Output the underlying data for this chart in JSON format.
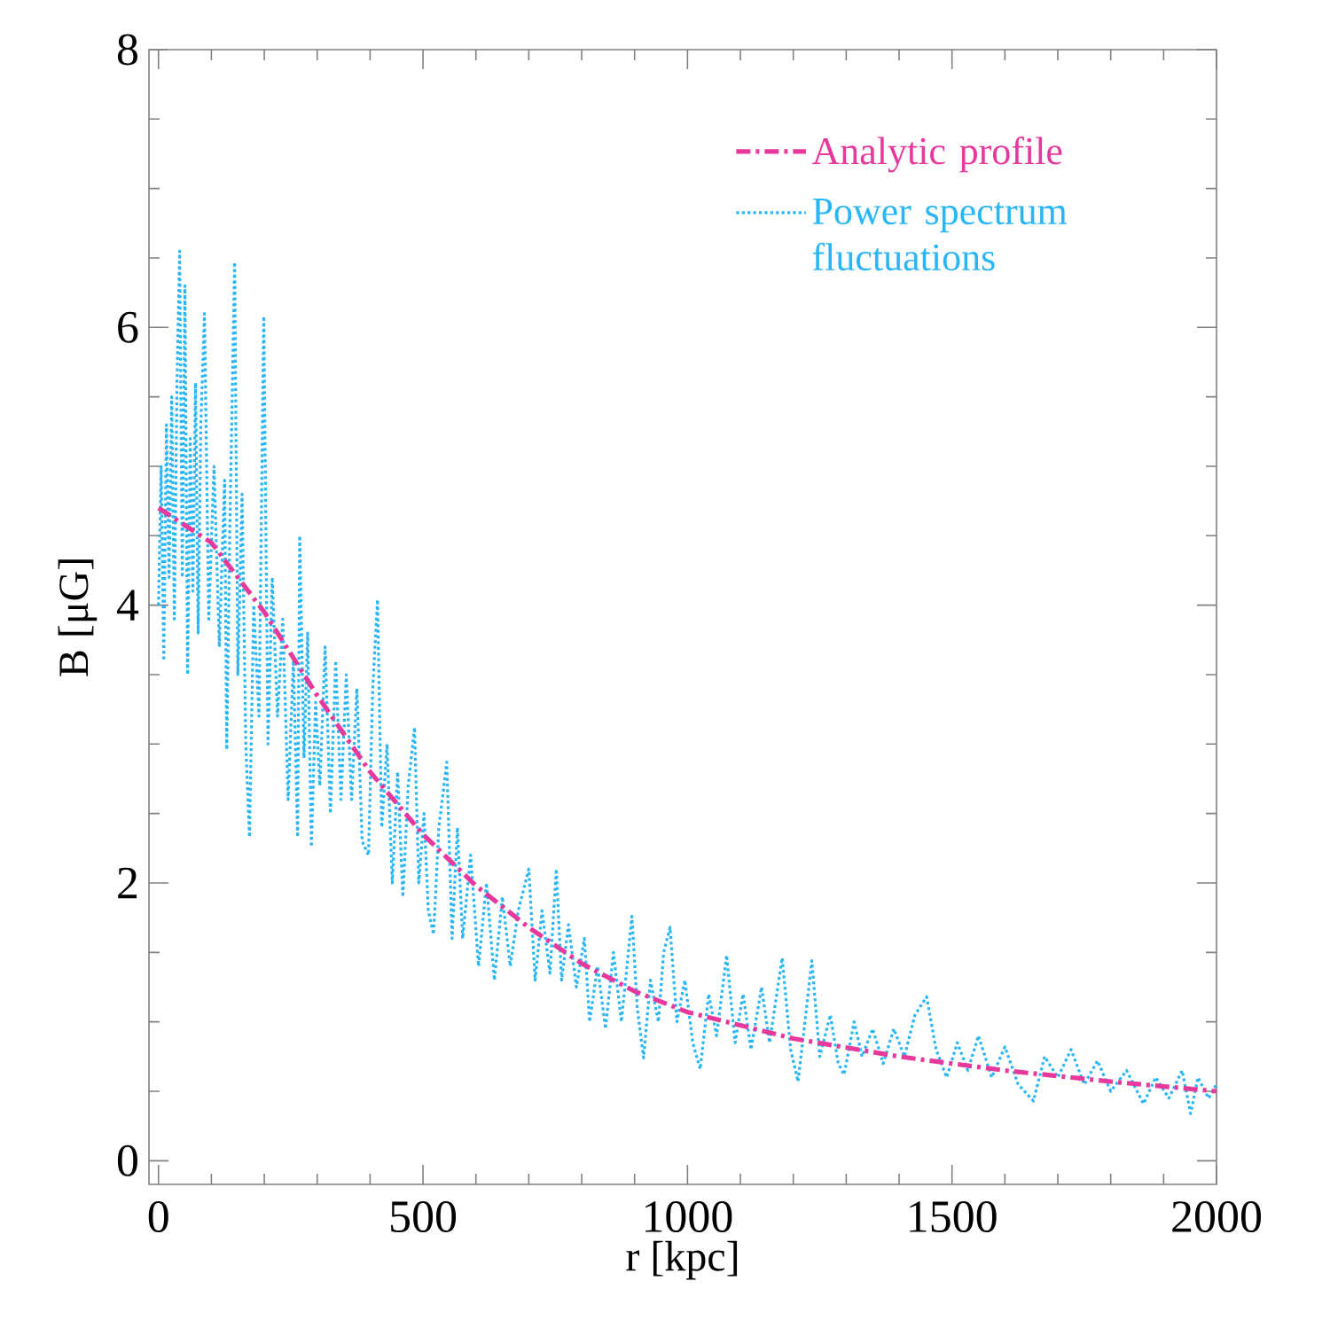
{
  "chart_data": {
    "type": "line",
    "xlabel": "r [kpc]",
    "ylabel": "B [μG]",
    "xlim": [
      -18,
      2000
    ],
    "ylim": [
      -0.17,
      8
    ],
    "xticks": [
      0,
      500,
      1000,
      1500,
      2000
    ],
    "yticks": [
      0,
      2,
      4,
      6,
      8
    ],
    "legend": "top right",
    "grid": false,
    "marker": "none",
    "series": [
      {
        "name": "Analytic profile",
        "color": "#e6399b",
        "line_style": "dashed",
        "x": [
          0,
          100,
          200,
          300,
          400,
          500,
          600,
          700,
          800,
          900,
          1000,
          1200,
          1400,
          1600,
          1800,
          2000
        ],
        "values": [
          4.7,
          4.45,
          3.95,
          3.35,
          2.8,
          2.35,
          1.98,
          1.68,
          1.42,
          1.22,
          1.07,
          0.88,
          0.75,
          0.65,
          0.57,
          0.5
        ]
      },
      {
        "name": "Power spectrum fluctuations",
        "color": "#29b6f6",
        "line_style": "dotted",
        "x": [
          0,
          5,
          10,
          15,
          20,
          25,
          30,
          35,
          40,
          45,
          50,
          55,
          60,
          65,
          70,
          75,
          80,
          87,
          95,
          105,
          115,
          125,
          129,
          135,
          144,
          150,
          158,
          165,
          172,
          180,
          190,
          199,
          207,
          215,
          225,
          235,
          245,
          255,
          263,
          267,
          275,
          282,
          289,
          297,
          305,
          315,
          325,
          335,
          345,
          355,
          365,
          375,
          385,
          397,
          405,
          414,
          422,
          432,
          442,
          452,
          462,
          472,
          484,
          492,
          502,
          510,
          520,
          530,
          545,
          555,
          565,
          575,
          590,
          605,
          620,
          635,
          650,
          665,
          680,
          700,
          712,
          725,
          740,
          752,
          762,
          775,
          790,
          805,
          815,
          830,
          845,
          860,
          875,
          895,
          905,
          917,
          930,
          945,
          955,
          967,
          980,
          995,
          1010,
          1024,
          1040,
          1055,
          1074,
          1090,
          1105,
          1120,
          1140,
          1155,
          1179,
          1195,
          1209,
          1222,
          1235,
          1250,
          1270,
          1285,
          1296,
          1315,
          1330,
          1350,
          1370,
          1390,
          1410,
          1430,
          1452,
          1470,
          1490,
          1510,
          1530,
          1550,
          1575,
          1600,
          1625,
          1654,
          1675,
          1700,
          1725,
          1750,
          1775,
          1800,
          1830,
          1862,
          1885,
          1910,
          1935,
          1951,
          1965,
          1985,
          2000
        ],
        "values": [
          4.0,
          5.0,
          3.6,
          5.3,
          4.2,
          5.5,
          3.9,
          5.6,
          6.55,
          4.2,
          6.3,
          3.5,
          5.2,
          4.1,
          5.6,
          3.8,
          5.3,
          6.1,
          3.9,
          5.0,
          3.7,
          4.9,
          2.96,
          4.6,
          6.47,
          3.5,
          4.8,
          3.0,
          2.33,
          4.0,
          3.2,
          6.08,
          3.0,
          4.2,
          3.2,
          3.9,
          2.6,
          3.6,
          2.33,
          4.5,
          2.9,
          3.8,
          2.26,
          3.3,
          2.7,
          3.7,
          2.5,
          3.6,
          2.6,
          3.5,
          2.6,
          3.4,
          2.3,
          2.2,
          3.4,
          4.04,
          2.4,
          3.0,
          2.0,
          2.8,
          1.9,
          2.7,
          3.12,
          2.0,
          2.5,
          1.8,
          1.63,
          2.4,
          2.87,
          1.6,
          2.4,
          1.6,
          2.2,
          1.4,
          2.0,
          1.3,
          1.9,
          1.4,
          1.8,
          2.1,
          1.3,
          1.8,
          1.35,
          2.1,
          1.3,
          1.7,
          1.25,
          1.6,
          1.0,
          1.4,
          0.95,
          1.5,
          1.0,
          1.76,
          1.1,
          0.74,
          1.3,
          1.0,
          1.5,
          1.68,
          1.0,
          1.3,
          0.85,
          0.66,
          1.2,
          0.9,
          1.48,
          0.85,
          1.2,
          0.8,
          1.25,
          0.85,
          1.46,
          0.8,
          0.57,
          1.0,
          1.44,
          0.75,
          1.05,
          0.7,
          0.62,
          1.0,
          0.75,
          0.95,
          0.7,
          0.95,
          0.75,
          1.05,
          1.18,
          0.8,
          0.6,
          0.85,
          0.65,
          0.9,
          0.6,
          0.82,
          0.55,
          0.43,
          0.75,
          0.6,
          0.8,
          0.55,
          0.72,
          0.5,
          0.65,
          0.41,
          0.6,
          0.45,
          0.65,
          0.34,
          0.6,
          0.45,
          0.55
        ]
      }
    ]
  }
}
